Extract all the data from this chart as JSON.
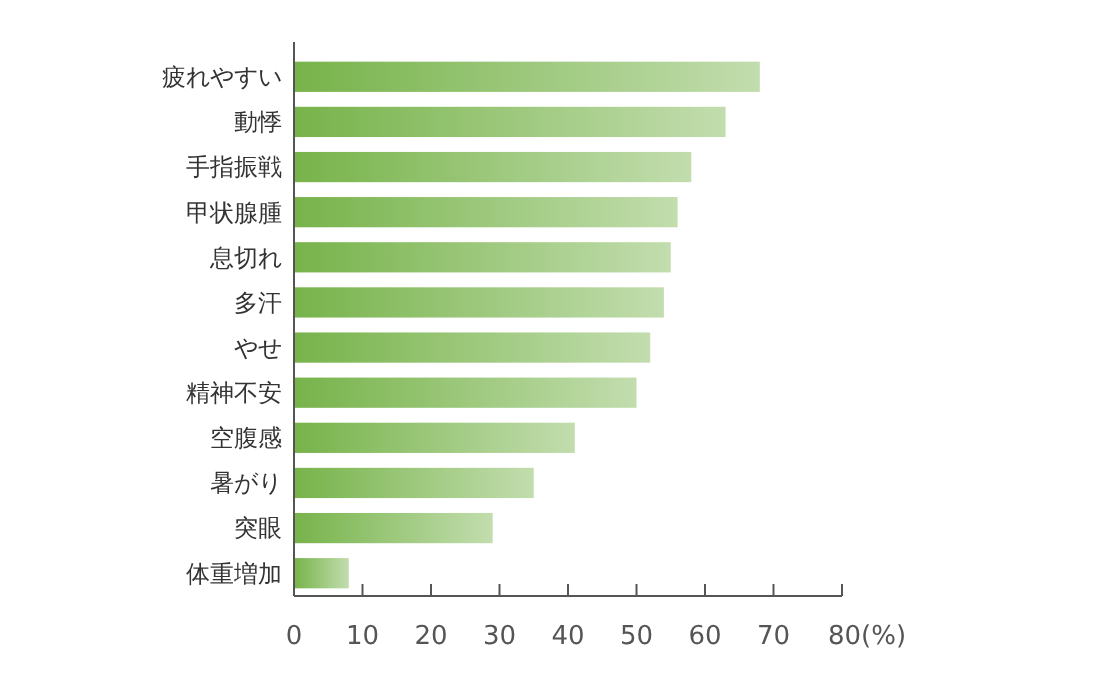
{
  "chart_data": {
    "type": "bar",
    "orientation": "horizontal",
    "categories": [
      "疲れやすい",
      "動悸",
      "手指振戦",
      "甲状腺腫",
      "息切れ",
      "多汗",
      "やせ",
      "精神不安",
      "空腹感",
      "暑がり",
      "突眼",
      "体重増加"
    ],
    "values": [
      68,
      63,
      58,
      56,
      55,
      54,
      52,
      50,
      41,
      35,
      29,
      8
    ],
    "color": "#77b34a",
    "xlim": [
      0,
      80
    ],
    "xticks": [
      0,
      10,
      20,
      30,
      40,
      50,
      60,
      70,
      {
        "value": 80,
        "label": "80(%)"
      }
    ]
  }
}
